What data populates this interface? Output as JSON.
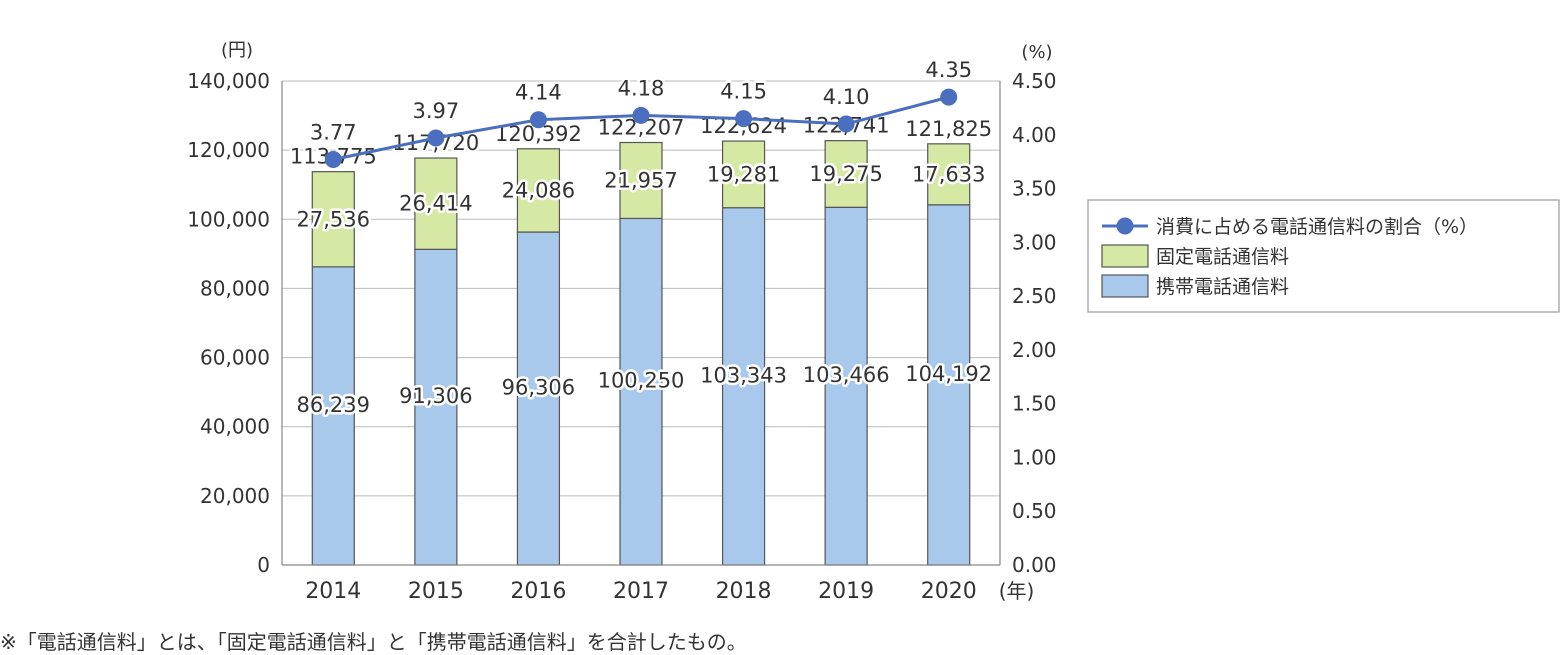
{
  "chart_data": {
    "type": "bar",
    "stacked": true,
    "categories": [
      "2014",
      "2015",
      "2016",
      "2017",
      "2018",
      "2019",
      "2020"
    ],
    "series": [
      {
        "name": "携帯電話通信料",
        "kind": "bar",
        "axis": "left",
        "color": "#a9c9ec",
        "values": [
          86239,
          91306,
          96306,
          100250,
          103343,
          103466,
          104192
        ],
        "labels": [
          "86,239",
          "91,306",
          "96,306",
          "100,250",
          "103,343",
          "103,466",
          "104,192"
        ]
      },
      {
        "name": "固定電話通信料",
        "kind": "bar",
        "axis": "left",
        "color": "#d5e8a4",
        "values": [
          27536,
          26414,
          24086,
          21957,
          19281,
          19275,
          17633
        ],
        "labels": [
          "27,536",
          "26,414",
          "24,086",
          "21,957",
          "19,281",
          "19,275",
          "17,633"
        ]
      },
      {
        "name": "消費に占める電話通信料の割合（%）",
        "kind": "line",
        "axis": "right",
        "color": "#4a6fbe",
        "values": [
          3.77,
          3.97,
          4.14,
          4.18,
          4.15,
          4.1,
          4.35
        ],
        "labels": [
          "3.77",
          "3.97",
          "4.14",
          "4.18",
          "4.15",
          "4.10",
          "4.35"
        ]
      }
    ],
    "totals": {
      "values": [
        113775,
        117720,
        120392,
        122207,
        122624,
        122741,
        121825
      ],
      "labels": [
        "113,775",
        "117,720",
        "120,392",
        "122,207",
        "122,624",
        "122,741",
        "121,825"
      ]
    },
    "y_left": {
      "unit": "(円)",
      "ylim": [
        0,
        140000
      ],
      "ticks": [
        0,
        20000,
        40000,
        60000,
        80000,
        100000,
        120000,
        140000
      ],
      "tick_labels": [
        "0",
        "20,000",
        "40,000",
        "60,000",
        "80,000",
        "100,000",
        "120,000",
        "140,000"
      ]
    },
    "y_right": {
      "unit": "(%)",
      "ylim": [
        0,
        4.5
      ],
      "ticks": [
        0,
        0.5,
        1.0,
        1.5,
        2.0,
        2.5,
        3.0,
        3.5,
        4.0,
        4.5
      ],
      "tick_labels": [
        "0.00",
        "0.50",
        "1.00",
        "1.50",
        "2.00",
        "2.50",
        "3.00",
        "3.50",
        "4.00",
        "4.50"
      ]
    },
    "x_unit": "(年)",
    "grid": true,
    "legend_position": "right",
    "legend_order": [
      "消費に占める電話通信料の割合（%）",
      "固定電話通信料",
      "携帯電話通信料"
    ]
  },
  "footnote": "※「電話通信料」とは、「固定電話通信料」と「携帯電話通信料」を合計したもの。"
}
